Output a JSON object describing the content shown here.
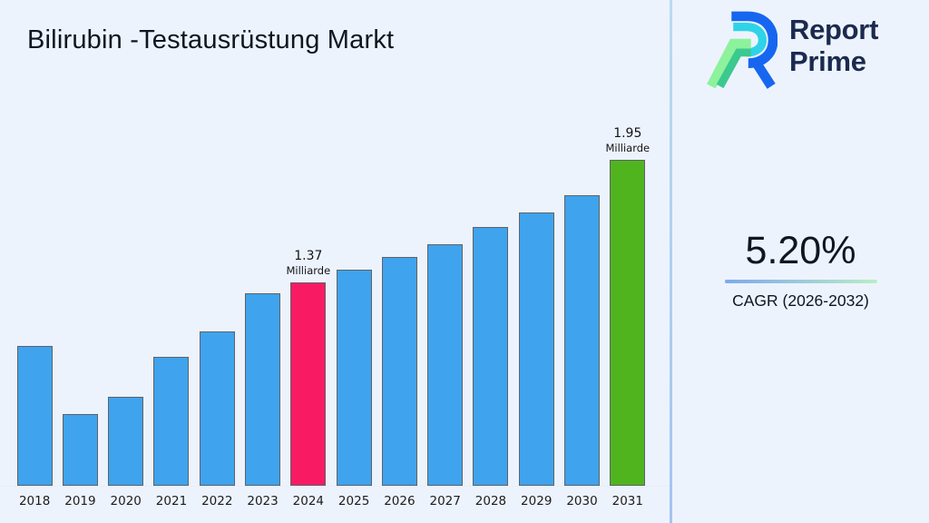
{
  "page": {
    "background": "#edf3fd"
  },
  "header": {
    "title": "Bilirubin -Testausrüstung Markt"
  },
  "brand": {
    "line1": "Report",
    "line2": "Prime",
    "navy": "#1b2a4e",
    "logo_blue": "#1766f0",
    "logo_cyan": "#2fd3e8",
    "logo_green_light": "#8df29c",
    "logo_green_teal": "#3bc98f"
  },
  "stats": {
    "cagr_value": "5.20%",
    "cagr_label": "CAGR (2026-2032)",
    "underline_from": "#7fa8ef",
    "underline_to": "#b8eec6"
  },
  "chart_data": {
    "type": "bar",
    "title": "Bilirubin -Testausrüstung Markt",
    "categories": [
      "2018",
      "2019",
      "2020",
      "2021",
      "2022",
      "2023",
      "2024",
      "2025",
      "2026",
      "2027",
      "2028",
      "2029",
      "2030",
      "2031"
    ],
    "values": [
      1.07,
      0.75,
      0.83,
      1.02,
      1.14,
      1.32,
      1.37,
      1.43,
      1.49,
      1.55,
      1.63,
      1.7,
      1.78,
      1.95
    ],
    "unit": "Milliarde",
    "xlabel": "",
    "ylabel": "",
    "ylim": [
      0.41,
      2.3
    ],
    "grid": false,
    "legend": false,
    "colors": {
      "default": "#3fa3ee",
      "edge": "#5f6368"
    },
    "highlights": [
      {
        "category": "2024",
        "color": "#f81b63",
        "value_label": "1.37",
        "unit_label": "Milliarde"
      },
      {
        "category": "2031",
        "color": "#50b41f",
        "value_label": "1.95",
        "unit_label": "Milliarde"
      }
    ]
  }
}
